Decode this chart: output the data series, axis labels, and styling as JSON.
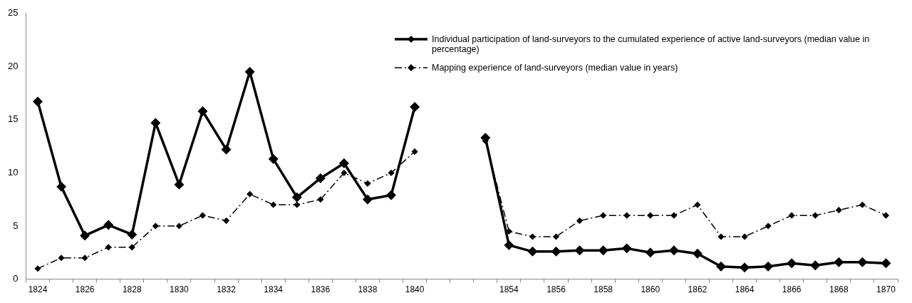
{
  "chart_data": {
    "type": "line",
    "categories": [
      "1824",
      null,
      "1826",
      null,
      "1828",
      null,
      "1830",
      null,
      "1832",
      null,
      "1834",
      null,
      "1836",
      null,
      "1838",
      null,
      "1840",
      null,
      null,
      null,
      "1854",
      null,
      "1856",
      null,
      "1858",
      null,
      "1860",
      null,
      "1862",
      null,
      "1864",
      null,
      "1866",
      null,
      "1868",
      null,
      "1870"
    ],
    "series": [
      {
        "name": "Individual participation of land-surveyors to the cumulated experience of active land-surveyors (median value in percentage)",
        "color": "#000000",
        "line_style": "solid",
        "values": [
          16.7,
          8.7,
          4.1,
          5.1,
          4.2,
          14.7,
          8.9,
          15.8,
          12.2,
          19.5,
          11.3,
          7.7,
          9.5,
          10.9,
          7.5,
          7.9,
          16.2,
          null,
          null,
          13.3,
          3.2,
          2.6,
          2.6,
          2.7,
          2.7,
          2.9,
          2.5,
          2.7,
          2.4,
          1.2,
          1.1,
          1.2,
          1.5,
          1.3,
          1.6,
          1.6,
          1.5
        ]
      },
      {
        "name": "Mapping experience of land-surveyors (median value in years)",
        "color": "#000000",
        "line_style": "dashed",
        "values": [
          1,
          2,
          2,
          3,
          3,
          5,
          5,
          6,
          5.5,
          8,
          7,
          7,
          7.5,
          10,
          9,
          10,
          12,
          null,
          null,
          13.0,
          4.5,
          4,
          4,
          5.5,
          6,
          6,
          6,
          6,
          7,
          4,
          4,
          5,
          6,
          6,
          6.5,
          7,
          6
        ]
      }
    ],
    "ylim": [
      0,
      25
    ],
    "yticks": [
      0,
      5,
      10,
      15,
      20,
      25
    ],
    "grid": false,
    "legend": "top right",
    "marker": "diamond"
  }
}
